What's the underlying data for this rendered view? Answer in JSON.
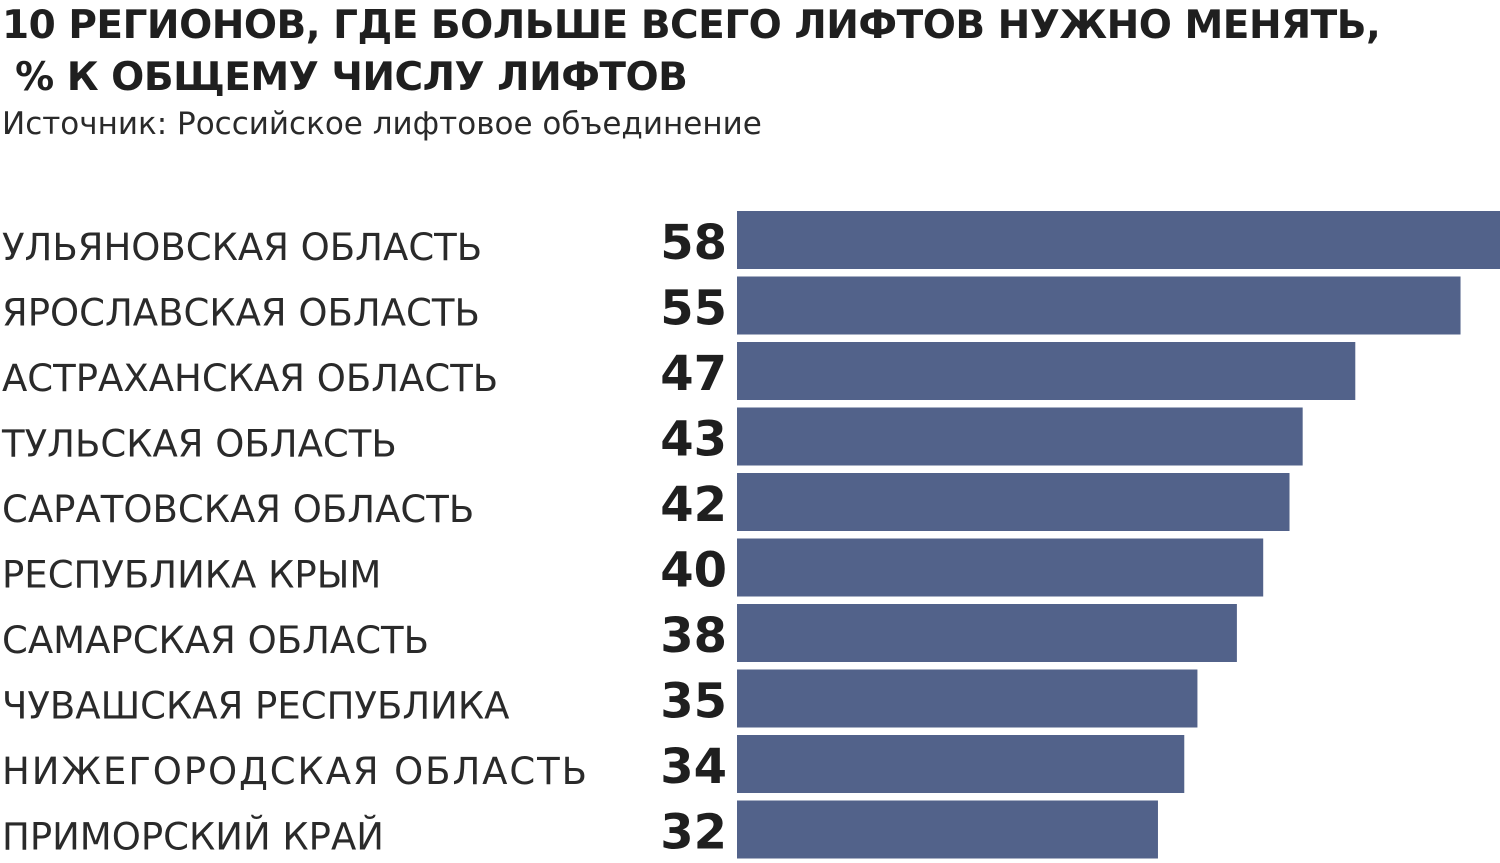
{
  "header": {
    "title_line1": "10 РЕГИОНОВ, ГДЕ БОЛЬШЕ ВСЕГО ЛИФТОВ НУЖНО МЕНЯТЬ,",
    "title_line2": " % К ОБЩЕМУ ЧИСЛУ ЛИФТОВ",
    "source": "Источник: Российское лифтовое объединение"
  },
  "chart_data": {
    "type": "bar",
    "orientation": "horizontal",
    "title": "10 РЕГИОНОВ, ГДЕ БОЛЬШЕ ВСЕГО ЛИФТОВ НУЖНО МЕНЯТЬ, % К ОБЩЕМУ ЧИСЛУ ЛИФТОВ",
    "subtitle": "Источник: Российское лифтовое объединение",
    "categories": [
      "УЛЬЯНОВСКАЯ ОБЛАСТЬ",
      "ЯРОСЛАВСКАЯ ОБЛАСТЬ",
      "АСТРАХАНСКАЯ ОБЛАСТЬ",
      "ТУЛЬСКАЯ ОБЛАСТЬ",
      "САРАТОВСКАЯ ОБЛАСТЬ",
      "РЕСПУБЛИКА КРЫМ",
      "САМАРСКАЯ ОБЛАСТЬ",
      "ЧУВАШСКАЯ РЕСПУБЛИКА",
      "НИЖЕГОРОДСКАЯ ОБЛАСТЬ",
      "ПРИМОРСКИЙ КРАЙ"
    ],
    "values": [
      58,
      55,
      47,
      43,
      42,
      40,
      38,
      35,
      34,
      32
    ],
    "xlim": [
      0,
      58
    ],
    "grid": false,
    "legend": "none",
    "bar_color": "#52628a"
  }
}
